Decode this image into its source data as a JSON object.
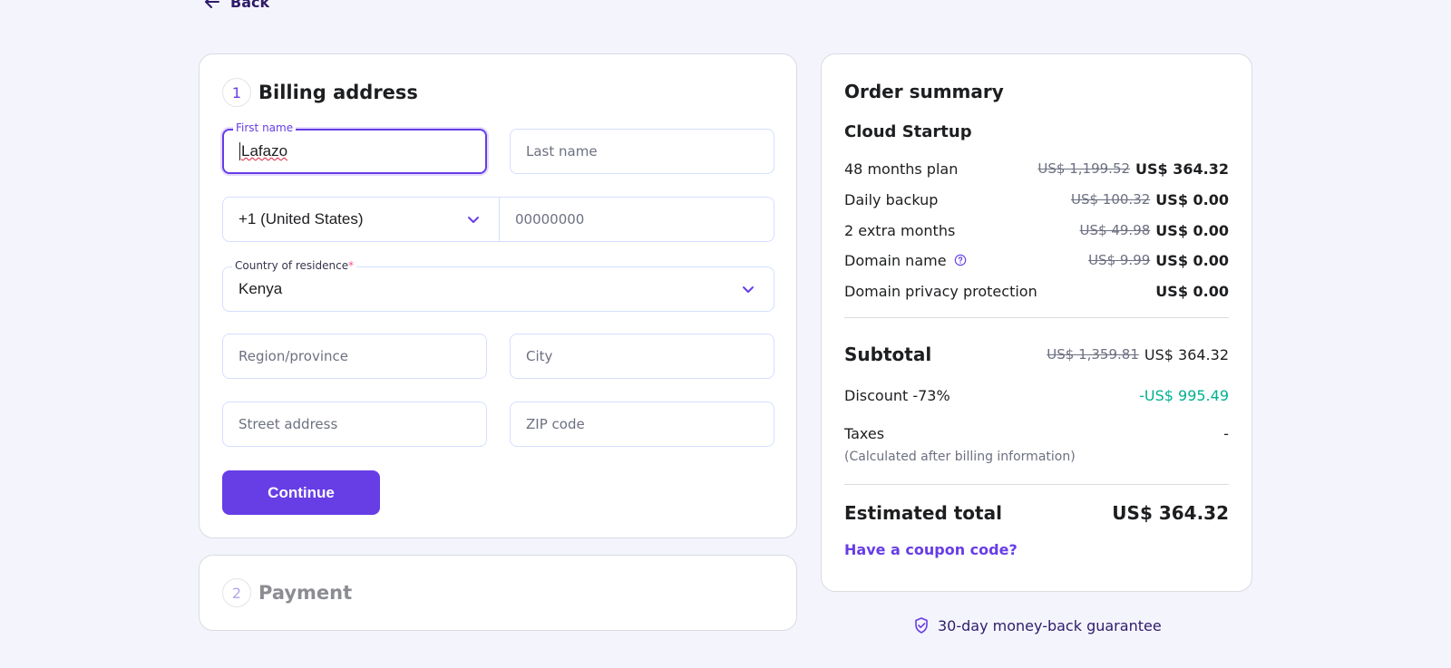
{
  "nav": {
    "back_label": "Back"
  },
  "billing": {
    "step_number": "1",
    "title": "Billing address",
    "first_name": {
      "label": "First name",
      "value": "Lafazo"
    },
    "last_name": {
      "placeholder": "Last name"
    },
    "phone_code": {
      "value": "+1 (United States)"
    },
    "phone": {
      "placeholder": "00000000"
    },
    "country": {
      "label": "Country of residence",
      "required_mark": "*",
      "value": "Kenya"
    },
    "region": {
      "placeholder": "Region/province"
    },
    "city": {
      "placeholder": "City"
    },
    "street": {
      "placeholder": "Street address"
    },
    "zip": {
      "placeholder": "ZIP code"
    },
    "continue_label": "Continue"
  },
  "payment": {
    "step_number": "2",
    "title": "Payment"
  },
  "summary": {
    "title": "Order summary",
    "plan_name": "Cloud Startup",
    "items": [
      {
        "label": "48 months plan",
        "old_price": "US$ 1,199.52",
        "price": "US$ 364.32"
      },
      {
        "label": "Daily backup",
        "old_price": "US$ 100.32",
        "price": "US$ 0.00"
      },
      {
        "label": "2 extra months",
        "old_price": "US$ 49.98",
        "price": "US$ 0.00"
      },
      {
        "label": "Domain name",
        "old_price": "US$ 9.99",
        "price": "US$ 0.00"
      },
      {
        "label": "Domain privacy protection",
        "price": "US$ 0.00"
      }
    ],
    "subtotal": {
      "label": "Subtotal",
      "old_price": "US$ 1,359.81",
      "price": "US$ 364.32"
    },
    "discount": {
      "label": "Discount -73%",
      "value": "-US$ 995.49"
    },
    "taxes": {
      "label": "Taxes",
      "value": "-",
      "note": "(Calculated after billing information)"
    },
    "total": {
      "label": "Estimated total",
      "value": "US$ 364.32"
    },
    "coupon_label": "Have a coupon code?"
  },
  "guarantee_text": "30-day money-back guarantee",
  "colors": {
    "accent": "#673de6",
    "background": "#f4f4fd",
    "discount": "#00b090"
  },
  "icons": [
    "arrow-left-icon",
    "chevron-down-icon",
    "question-circle-icon",
    "shield-check-icon"
  ]
}
